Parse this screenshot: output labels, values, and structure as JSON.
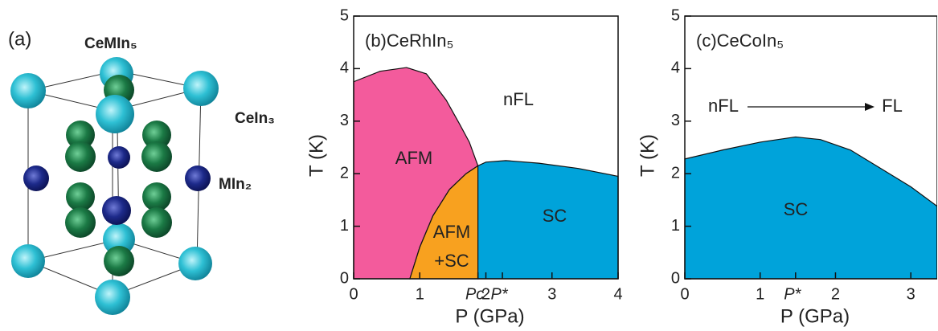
{
  "structure": {
    "panel_label": "(a)",
    "title": "CeMIn₅",
    "labels": [
      "CeIn₃",
      "MIn₂"
    ]
  },
  "chart_data": [
    {
      "type": "phase-diagram",
      "title": "(b)CeRhIn₅",
      "xlabel": "P (GPa)",
      "ylabel": "T (K)",
      "xlim": [
        0,
        4
      ],
      "ylim": [
        0,
        5
      ],
      "xticks": [
        0,
        1,
        {
          "value": 1.88,
          "label": "Pc"
        },
        2,
        {
          "value": 2.25,
          "label": "P*"
        },
        3,
        4
      ],
      "yticks": [
        0,
        1,
        2,
        3,
        4,
        5
      ],
      "regions": [
        {
          "label": [
            "AFM"
          ],
          "color": "#f35b9c",
          "x": [
            0,
            0.4,
            0.8,
            1.1,
            1.4,
            1.6,
            1.75,
            1.88,
            1.7,
            1.45,
            1.2,
            1.0,
            0.85,
            0
          ],
          "y": [
            3.75,
            3.95,
            4.02,
            3.9,
            3.4,
            2.95,
            2.6,
            2.15,
            2.0,
            1.7,
            1.2,
            0.6,
            0,
            0
          ]
        },
        {
          "label": [
            "AFM",
            "+SC"
          ],
          "color": "#f8a11f",
          "x": [
            0.85,
            1.0,
            1.2,
            1.45,
            1.7,
            1.88,
            1.88
          ],
          "y": [
            0,
            0.6,
            1.2,
            1.7,
            2.0,
            2.15,
            0
          ]
        },
        {
          "label": [
            "SC"
          ],
          "color": "#00a3da",
          "x": [
            1.88,
            1.88,
            2.0,
            2.3,
            2.8,
            3.4,
            4,
            4
          ],
          "y": [
            0,
            2.15,
            2.22,
            2.25,
            2.2,
            2.1,
            1.95,
            0
          ]
        }
      ],
      "annotations": [
        "nFL"
      ]
    },
    {
      "type": "phase-diagram",
      "title": "(c)CeCoIn₅",
      "xlabel": "P (GPa)",
      "ylabel": "T (K)",
      "xlim": [
        0,
        3.35
      ],
      "ylim": [
        0,
        5
      ],
      "xticks": [
        0,
        1,
        {
          "value": 1.47,
          "label": "P*"
        },
        2,
        3
      ],
      "yticks": [
        0,
        1,
        2,
        3,
        4,
        5
      ],
      "regions": [
        {
          "label": [
            "SC"
          ],
          "color": "#00a3da",
          "x": [
            0,
            0.5,
            1.0,
            1.47,
            1.8,
            2.2,
            2.6,
            3.0,
            3.35,
            3.35,
            0
          ],
          "y": [
            2.28,
            2.45,
            2.6,
            2.7,
            2.65,
            2.45,
            2.1,
            1.75,
            1.38,
            0,
            0
          ]
        }
      ],
      "annotations": [
        "nFL",
        "FL"
      ]
    }
  ]
}
